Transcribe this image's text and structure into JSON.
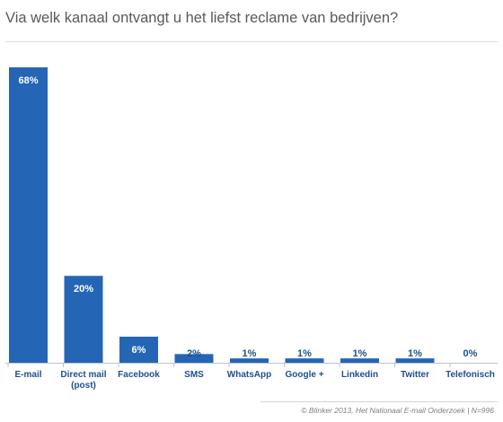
{
  "header": {
    "title": "Via welk kanaal ontvangt u het liefst reclame van bedrijven?"
  },
  "footer": {
    "source": "© Blinker 2013, Het Nationaal E-mail Onderzoek | N=996"
  },
  "colors": {
    "bar": "#2466b5",
    "axis": "#b9c4d2",
    "label": "#1f4f8f"
  },
  "chart_data": {
    "type": "bar",
    "title": "Via welk kanaal ontvangt u het liefst reclame van bedrijven?",
    "categories": [
      [
        "E-mail"
      ],
      [
        "Direct mail",
        "(post)"
      ],
      [
        "Facebook"
      ],
      [
        "SMS"
      ],
      [
        "WhatsApp"
      ],
      [
        "Google +"
      ],
      [
        "Linkedin"
      ],
      [
        "Twitter"
      ],
      [
        "Telefonisch"
      ]
    ],
    "values": [
      68,
      20,
      6,
      2,
      1,
      1,
      1,
      1,
      0
    ],
    "value_labels": [
      "68%",
      "20%",
      "6%",
      "2%",
      "1%",
      "1%",
      "1%",
      "1%",
      "0%"
    ],
    "ylim": [
      0,
      68
    ],
    "grid": false,
    "legend": "none"
  }
}
